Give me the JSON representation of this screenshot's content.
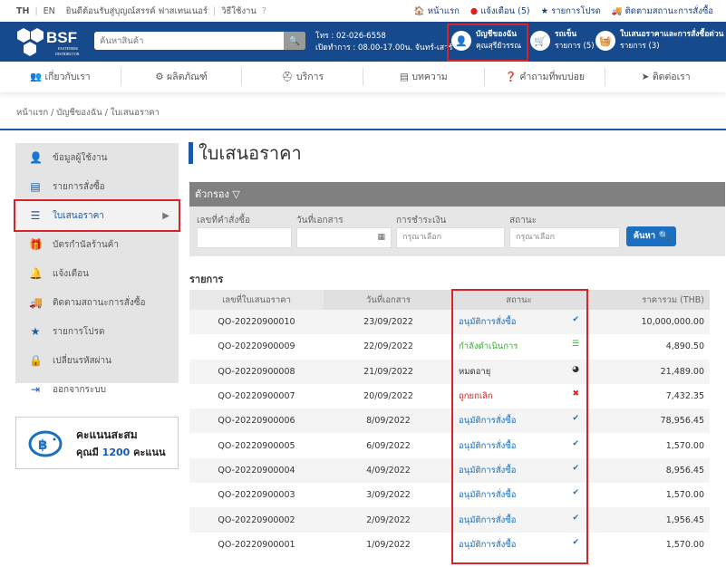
{
  "topbar": {
    "lang_th": "TH",
    "lang_en": "EN",
    "welcome": "ยินดีต้อนรับสู่บุญณ์สรรค์ ฟาสเทนเนอร์",
    "howto": "วิธีใช้งาน",
    "links": [
      "หน้าแรก",
      "แจ้งเตือน (5)",
      "รายการโปรด",
      "ติดตามสถานะการสั่งซื้อ"
    ]
  },
  "header": {
    "logo": "BSF FASTENERS DISTRIBUTOR",
    "search_placeholder": "ค้นหาสินค้า",
    "phone": "โทร : 02-026-6558",
    "hours": "เปิดทำการ : 08.00-17.00น. จันทร์-เสาร์",
    "account_title": "บัญชีของฉัน",
    "account_name": "คุณสุรียัวรรณ",
    "cart_title": "รถเข็น",
    "cart_count": "รายการ (5)",
    "quick_title": "ใบเสนอราคาและการสั่งซื้อด่วน",
    "quick_count": "รายการ (3)"
  },
  "nav": [
    "เกี่ยวกับเรา",
    "ผลิตภัณฑ์",
    "บริการ",
    "บทความ",
    "คำถามที่พบบ่อย",
    "ติดต่อเรา"
  ],
  "breadcrumb": "หน้าแรก / บัญชีของฉัน / ใบเสนอราคา",
  "sidebar": {
    "items": [
      {
        "label": "ข้อมูลผู้ใช้งาน",
        "icon": "user-icon"
      },
      {
        "label": "รายการสั่งซื้อ",
        "icon": "receipt-icon"
      },
      {
        "label": "ใบเสนอราคา",
        "icon": "list-icon",
        "active": true
      },
      {
        "label": "บัตรกำนัลร้านค้า",
        "icon": "gift-icon"
      },
      {
        "label": "แจ้งเตือน",
        "icon": "bell-icon"
      },
      {
        "label": "ติดตามสถานะการสั่งซื้อ",
        "icon": "truck-icon"
      },
      {
        "label": "รายการโปรด",
        "icon": "star-icon"
      },
      {
        "label": "เปลี่ยนรหัสผ่าน",
        "icon": "lock-icon"
      },
      {
        "label": "ออกจากระบบ",
        "icon": "logout-icon"
      }
    ]
  },
  "points": {
    "title": "คะแนนสะสม",
    "prefix": "คุณมี",
    "value": "1200",
    "suffix": "คะแนน"
  },
  "main": {
    "title": "ใบเสนอราคา",
    "filter_title": "ตัวกรอง",
    "filters": {
      "order_no": "เลขที่คำสั่งซื้อ",
      "doc_date": "วันที่เอกสาร",
      "payment": "การชำระเงิน",
      "payment_placeholder": "กรุณาเลือก",
      "status": "สถานะ",
      "status_placeholder": "กรุณาเลือก",
      "search": "ค้นหา"
    },
    "list_title": "รายการ",
    "columns": [
      "เลขที่ใบเสนอราคา",
      "วันที่เอกสาร",
      "สถานะ",
      "ราคารวม (THB)"
    ],
    "rows": [
      [
        "QO-20220900010",
        "23/09/2022",
        "อนุมัติการสั่งซื้อ",
        "10,000,000.00",
        "approved"
      ],
      [
        "QO-20220900009",
        "22/09/2022",
        "กำลังดำเนินการ",
        "4,890.50",
        "progress"
      ],
      [
        "QO-20220900008",
        "21/09/2022",
        "หมดอายุ",
        "21,489.00",
        "expired"
      ],
      [
        "QO-20220900007",
        "20/09/2022",
        "ถูกยกเลิก",
        "7,432.35",
        "cancelled"
      ],
      [
        "QO-20220900006",
        "8/09/2022",
        "อนุมัติการสั่งซื้อ",
        "78,956.45",
        "approved"
      ],
      [
        "QO-20220900005",
        "6/09/2022",
        "อนุมัติการสั่งซื้อ",
        "1,570.00",
        "approved"
      ],
      [
        "QO-20220900004",
        "4/09/2022",
        "อนุมัติการสั่งซื้อ",
        "8,956.45",
        "approved"
      ],
      [
        "QO-20220900003",
        "3/09/2022",
        "อนุมัติการสั่งซื้อ",
        "1,570.00",
        "approved"
      ],
      [
        "QO-20220900002",
        "2/09/2022",
        "อนุมัติการสั่งซื้อ",
        "1,956.45",
        "approved"
      ],
      [
        "QO-20220900001",
        "1/09/2022",
        "อนุมัติการสั่งซื้อ",
        "1,570.00",
        "approved"
      ]
    ]
  },
  "colors": {
    "brand": "#174a8c",
    "accent": "#1a6fc0",
    "approved": "#1a6fc0",
    "progress": "#3aaa35",
    "expired": "#333333",
    "cancelled": "#e02020",
    "highlight": "#d8232a"
  }
}
